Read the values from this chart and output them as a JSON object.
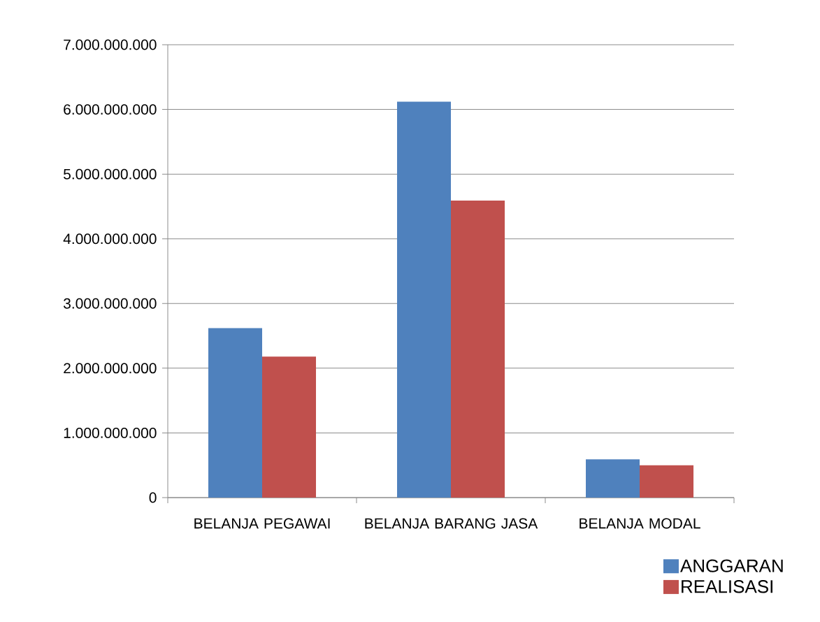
{
  "chart_data": {
    "type": "bar",
    "categories": [
      "BELANJA PEGAWAI",
      "BELANJA BARANG JASA",
      "BELANJA MODAL"
    ],
    "series": [
      {
        "name": "ANGGARAN",
        "color": "#4f81bd",
        "values": [
          2620000000,
          6120000000,
          590000000
        ]
      },
      {
        "name": "REALISASI",
        "color": "#c0504d",
        "values": [
          2180000000,
          4590000000,
          500000000
        ]
      }
    ],
    "ylim": [
      0,
      7000000000
    ],
    "yticks": [
      0,
      {
        "value": 1000000000,
        "label": "1.000.000.000"
      },
      {
        "value": 2000000000,
        "label": "2.000.000.000"
      },
      {
        "value": 3000000000,
        "label": "3.000.000.000"
      },
      {
        "value": 4000000000,
        "label": "4.000.000.000"
      },
      {
        "value": 5000000000,
        "label": "5.000.000.000"
      },
      {
        "value": 6000000000,
        "label": "6.000.000.000"
      },
      {
        "value": 7000000000,
        "label": "7.000.000.000"
      }
    ],
    "grid": "y",
    "legend": "bottom right"
  }
}
